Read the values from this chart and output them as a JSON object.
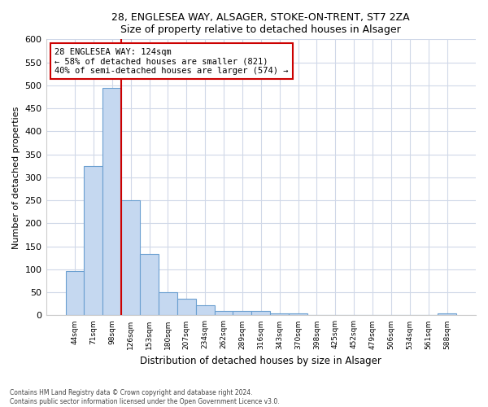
{
  "title1": "28, ENGLESEA WAY, ALSAGER, STOKE-ON-TRENT, ST7 2ZA",
  "title2": "Size of property relative to detached houses in Alsager",
  "xlabel": "Distribution of detached houses by size in Alsager",
  "ylabel": "Number of detached properties",
  "categories": [
    "44sqm",
    "71sqm",
    "98sqm",
    "126sqm",
    "153sqm",
    "180sqm",
    "207sqm",
    "234sqm",
    "262sqm",
    "289sqm",
    "316sqm",
    "343sqm",
    "370sqm",
    "398sqm",
    "425sqm",
    "452sqm",
    "479sqm",
    "506sqm",
    "534sqm",
    "561sqm",
    "588sqm"
  ],
  "values": [
    97,
    325,
    495,
    250,
    133,
    51,
    36,
    22,
    9,
    10,
    10,
    5,
    5,
    1,
    1,
    1,
    1,
    1,
    1,
    1,
    5
  ],
  "bar_color": "#c5d8f0",
  "bar_edge_color": "#6a9fd0",
  "vline_x_idx": 2.5,
  "vline_color": "#cc0000",
  "annotation_text": "28 ENGLESEA WAY: 124sqm\n← 58% of detached houses are smaller (821)\n40% of semi-detached houses are larger (574) →",
  "annotation_box_color": "#ffffff",
  "annotation_box_edge": "#cc0000",
  "ylim": [
    0,
    600
  ],
  "yticks": [
    0,
    50,
    100,
    150,
    200,
    250,
    300,
    350,
    400,
    450,
    500,
    550,
    600
  ],
  "footnote": "Contains HM Land Registry data © Crown copyright and database right 2024.\nContains public sector information licensed under the Open Government Licence v3.0.",
  "bg_color": "#ffffff",
  "plot_bg_color": "#ffffff",
  "grid_color": "#d0d8e8"
}
